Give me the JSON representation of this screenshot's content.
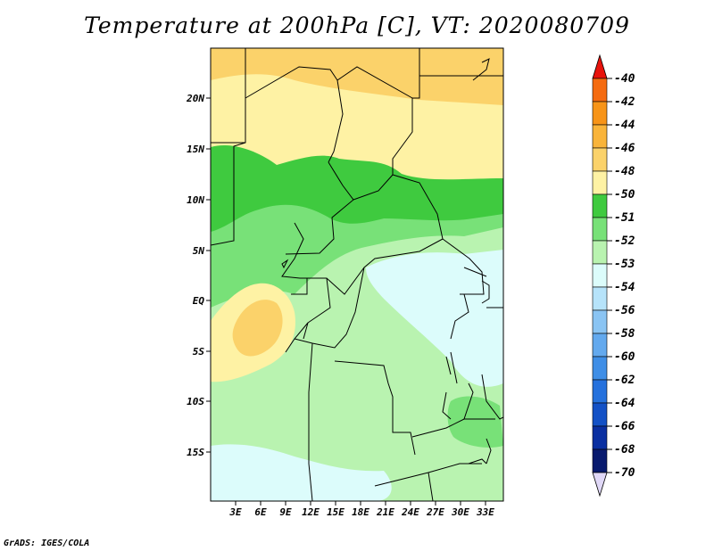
{
  "title": "Temperature at 200hPa [C], VT: 2020080709",
  "credit": "GrADS: IGES/COLA",
  "map": {
    "lat_ticks": [
      "20N",
      "15N",
      "10N",
      "5N",
      "EQ",
      "5S",
      "10S",
      "15S"
    ],
    "lon_ticks": [
      "3E",
      "6E",
      "9E",
      "12E",
      "15E",
      "18E",
      "21E",
      "24E",
      "27E",
      "30E",
      "33E"
    ],
    "colors": {
      "-48": "#fbd26a",
      "-50": "#fef2a4",
      "-51": "#3fca3f",
      "-52": "#78e178",
      "-53": "#b9f3b0",
      "-54": "#dcfcfb",
      "border": "#000000"
    }
  },
  "colorbar": {
    "labels": [
      "-40",
      "-42",
      "-44",
      "-46",
      "-48",
      "-50",
      "-51",
      "-52",
      "-53",
      "-54",
      "-56",
      "-58",
      "-60",
      "-62",
      "-64",
      "-66",
      "-68",
      "-70"
    ],
    "top_arrow_color": "#e8130c",
    "bottom_arrow_color": "#e0d8f7",
    "colors": [
      "#f04812",
      "#f56b10",
      "#f79418",
      "#f9b43a",
      "#fbd26a",
      "#fef2a4",
      "#3fca3f",
      "#78e178",
      "#b9f3b0",
      "#dcfcfb",
      "#b6e3fa",
      "#8ac4f3",
      "#63a9ee",
      "#3f8ee6",
      "#2571dd",
      "#1351c6",
      "#0a2fa1",
      "#081a6e"
    ]
  }
}
